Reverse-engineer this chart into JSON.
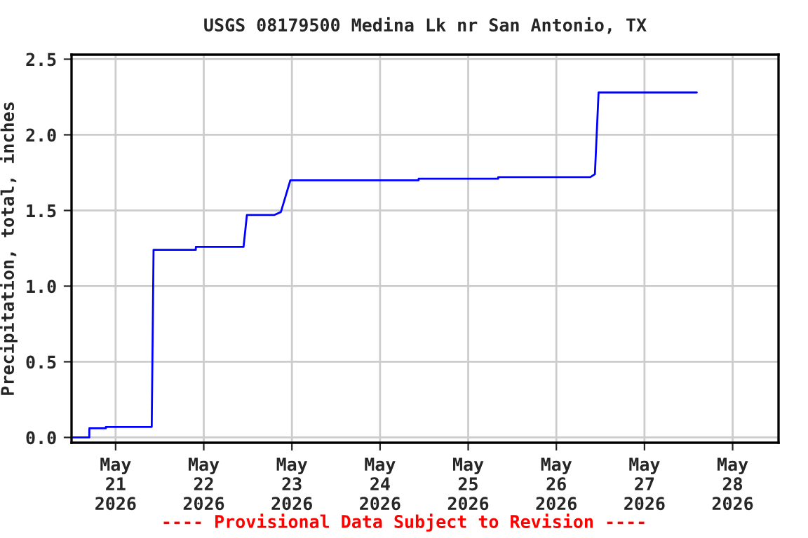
{
  "chart_data": {
    "type": "line",
    "title": "USGS 08179500 Medina Lk nr San Antonio, TX",
    "ylabel": "Precipitation, total, inches",
    "x": [
      "2026-05-20T12:25",
      "2026-05-20T16:50",
      "2026-05-20T16:51",
      "2026-05-20T21:20",
      "2026-05-20T21:21",
      "2026-05-21T09:50",
      "2026-05-21T10:20",
      "2026-05-21T21:50",
      "2026-05-21T21:51",
      "2026-05-22T10:50",
      "2026-05-22T11:45",
      "2026-05-22T19:10",
      "2026-05-22T21:00",
      "2026-05-22T23:35",
      "2026-05-24T10:30",
      "2026-05-24T10:31",
      "2026-05-25T08:10",
      "2026-05-25T08:11",
      "2026-05-26T09:15",
      "2026-05-26T10:30",
      "2026-05-26T11:30",
      "2026-05-27T14:15"
    ],
    "series": [
      {
        "color": "#0000ff",
        "values": [
          0.0,
          0.0,
          0.06,
          0.06,
          0.07,
          0.07,
          1.24,
          1.24,
          1.26,
          1.26,
          1.47,
          1.47,
          1.49,
          1.7,
          1.7,
          1.71,
          1.71,
          1.72,
          1.72,
          1.74,
          2.28,
          2.28
        ]
      }
    ],
    "xlim": [
      "2026-05-20T12:00",
      "2026-05-28T12:30"
    ],
    "xticks": [
      {
        "value": "2026-05-21",
        "label": "May\n21\n2026"
      },
      {
        "value": "2026-05-22",
        "label": "May\n22\n2026"
      },
      {
        "value": "2026-05-23",
        "label": "May\n23\n2026"
      },
      {
        "value": "2026-05-24",
        "label": "May\n24\n2026"
      },
      {
        "value": "2026-05-25",
        "label": "May\n25\n2026"
      },
      {
        "value": "2026-05-26",
        "label": "May\n26\n2026"
      },
      {
        "value": "2026-05-27",
        "label": "May\n27\n2026"
      },
      {
        "value": "2026-05-28",
        "label": "May\n28\n2026"
      }
    ],
    "ylim": [
      -0.035,
      2.53
    ],
    "yticks": [
      {
        "value": 0,
        "label": "0.0"
      },
      {
        "value": 0.5,
        "label": "0.5"
      },
      {
        "value": 1,
        "label": "1.0"
      },
      {
        "value": 1.5,
        "label": "1.5"
      },
      {
        "value": 2,
        "label": "2.0"
      },
      {
        "value": 2.5,
        "label": "2.5"
      }
    ],
    "grid": true,
    "annotations": [
      "---- Provisional Data Subject to Revision ----"
    ]
  }
}
